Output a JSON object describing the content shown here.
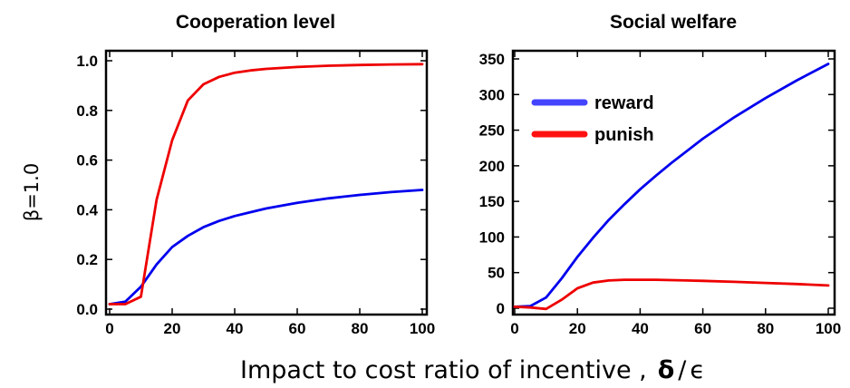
{
  "row_label": "β=1.0",
  "x_label": {
    "text": "Impact to cost ratio of incentive ,",
    "symbol_numerator": "δ",
    "symbol_slash": "/",
    "symbol_denominator": "ϵ"
  },
  "colors": {
    "reward": "#0000ee",
    "punish": "#ee0000",
    "legend_reward": "#4444ff",
    "legend_punish": "#ff1111"
  },
  "chart_data": [
    {
      "type": "line",
      "title": "Cooperation level",
      "xlabel": "",
      "ylabel": "",
      "xlim": [
        0,
        100
      ],
      "ylim": [
        0,
        1.0
      ],
      "xticks": [
        0,
        20,
        40,
        60,
        80,
        100
      ],
      "yticks": [
        0.0,
        0.2,
        0.4,
        0.6,
        0.8,
        1.0
      ],
      "ytick_labels": [
        "0.0",
        "0.2",
        "0.4",
        "0.6",
        "0.8",
        "1.0"
      ],
      "grid": false,
      "series": [
        {
          "key": "reward",
          "x": [
            0,
            5,
            10,
            15,
            20,
            25,
            30,
            35,
            40,
            45,
            50,
            60,
            70,
            80,
            90,
            100
          ],
          "values": [
            0.02,
            0.03,
            0.09,
            0.18,
            0.25,
            0.295,
            0.33,
            0.355,
            0.375,
            0.39,
            0.405,
            0.428,
            0.446,
            0.46,
            0.471,
            0.48
          ]
        },
        {
          "key": "punish",
          "x": [
            0,
            5,
            10,
            15,
            20,
            25,
            30,
            35,
            40,
            45,
            50,
            60,
            70,
            80,
            90,
            100
          ],
          "values": [
            0.02,
            0.02,
            0.05,
            0.44,
            0.68,
            0.84,
            0.905,
            0.935,
            0.952,
            0.961,
            0.967,
            0.975,
            0.98,
            0.983,
            0.985,
            0.986
          ]
        }
      ]
    },
    {
      "type": "line",
      "title": "Social welfare",
      "xlabel": "",
      "ylabel": "",
      "xlim": [
        0,
        100
      ],
      "ylim": [
        0,
        350
      ],
      "xticks": [
        0,
        20,
        40,
        60,
        80,
        100
      ],
      "yticks": [
        0,
        50,
        100,
        150,
        200,
        250,
        300,
        350
      ],
      "ytick_labels": [
        "0",
        "50",
        "100",
        "150",
        "200",
        "250",
        "300",
        "350"
      ],
      "grid": false,
      "legend": {
        "placement": "top-left",
        "entries": [
          {
            "key": "reward",
            "label": "reward"
          },
          {
            "key": "punish",
            "label": "punish"
          }
        ]
      },
      "series": [
        {
          "key": "reward",
          "name": "reward",
          "x": [
            0,
            5,
            10,
            15,
            20,
            25,
            30,
            35,
            40,
            45,
            50,
            60,
            70,
            80,
            90,
            100
          ],
          "values": [
            2,
            3,
            15,
            42,
            72,
            99,
            124,
            146,
            167,
            186,
            204,
            238,
            268,
            295,
            320,
            343
          ]
        },
        {
          "key": "punish",
          "name": "punish",
          "x": [
            0,
            5,
            10,
            15,
            20,
            25,
            30,
            35,
            40,
            45,
            50,
            60,
            70,
            80,
            90,
            100
          ],
          "values": [
            2,
            1,
            -1,
            12,
            28,
            36,
            39,
            40,
            40,
            40,
            39.5,
            38.5,
            37,
            35.5,
            34,
            32
          ]
        }
      ]
    }
  ]
}
